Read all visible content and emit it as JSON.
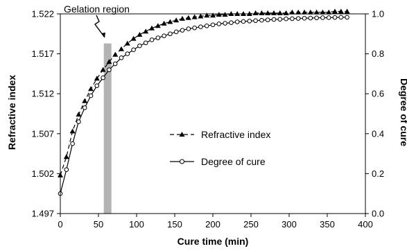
{
  "chart_data": {
    "type": "line",
    "x_axis": {
      "label": "Cure time (min)",
      "range": [
        0,
        400
      ],
      "ticks": [
        "0",
        "50",
        "100",
        "150",
        "200",
        "250",
        "300",
        "350",
        "400"
      ]
    },
    "y_axis_left": {
      "label": "Refractive index",
      "range": [
        1.497,
        1.522
      ],
      "ticks": [
        "1.497",
        "1.502",
        "1.507",
        "1.512",
        "1.517",
        "1.522"
      ]
    },
    "y_axis_right": {
      "label": "Degree of cure",
      "range": [
        0.0,
        1.0
      ],
      "ticks": [
        "0.0",
        "0.2",
        "0.4",
        "0.6",
        "0.8",
        "1.0"
      ]
    },
    "annotation": {
      "text": "Gelation region",
      "region_x": [
        57,
        67
      ],
      "region_top_value": 1.5183
    },
    "legend": {
      "placement": "center-right",
      "entries": [
        "Refractive index",
        "Degree of cure"
      ]
    },
    "series": [
      {
        "name": "Refractive index",
        "axis": "left",
        "marker": "triangle",
        "line": "dashed",
        "color": "#000000",
        "x": [
          0,
          8,
          16,
          24,
          32,
          40,
          48,
          56,
          64,
          72,
          80,
          88,
          96,
          104,
          112,
          120,
          128,
          136,
          144,
          152,
          160,
          168,
          176,
          184,
          192,
          200,
          208,
          216,
          224,
          232,
          240,
          248,
          256,
          264,
          272,
          280,
          288,
          296,
          304,
          312,
          320,
          328,
          336,
          344,
          352,
          360,
          368,
          376
        ],
        "y": [
          1.5018,
          1.5041,
          1.5073,
          1.5094,
          1.5111,
          1.5126,
          1.5139,
          1.515,
          1.516,
          1.5169,
          1.5176,
          1.5183,
          1.5189,
          1.5194,
          1.5198,
          1.5202,
          1.5205,
          1.5208,
          1.521,
          1.5212,
          1.5214,
          1.5215,
          1.5216,
          1.5217,
          1.5218,
          1.5218,
          1.5219,
          1.5219,
          1.522,
          1.522,
          1.522,
          1.522,
          1.5221,
          1.5221,
          1.5221,
          1.5221,
          1.5221,
          1.5221,
          1.5222,
          1.5222,
          1.5222,
          1.5222,
          1.5222,
          1.5222,
          1.5222,
          1.5223,
          1.5223,
          1.5223
        ]
      },
      {
        "name": "Degree of cure",
        "axis": "right",
        "marker": "circle-open",
        "line": "solid",
        "color": "#000000",
        "x": [
          0,
          8,
          16,
          24,
          32,
          40,
          48,
          56,
          64,
          72,
          80,
          88,
          96,
          104,
          112,
          120,
          128,
          136,
          144,
          152,
          160,
          168,
          176,
          184,
          192,
          200,
          208,
          216,
          224,
          232,
          240,
          248,
          256,
          264,
          272,
          280,
          288,
          296,
          304,
          312,
          320,
          328,
          336,
          344,
          352,
          360,
          368,
          376
        ],
        "y": [
          0.1,
          0.22,
          0.35,
          0.46,
          0.53,
          0.59,
          0.64,
          0.68,
          0.72,
          0.75,
          0.78,
          0.8,
          0.82,
          0.84,
          0.855,
          0.87,
          0.88,
          0.89,
          0.9,
          0.91,
          0.918,
          0.925,
          0.93,
          0.935,
          0.94,
          0.945,
          0.95,
          0.953,
          0.956,
          0.96,
          0.962,
          0.964,
          0.966,
          0.968,
          0.97,
          0.972,
          0.973,
          0.975,
          0.976,
          0.977,
          0.978,
          0.979,
          0.98,
          0.981,
          0.981,
          0.982,
          0.983,
          0.983
        ]
      }
    ]
  }
}
